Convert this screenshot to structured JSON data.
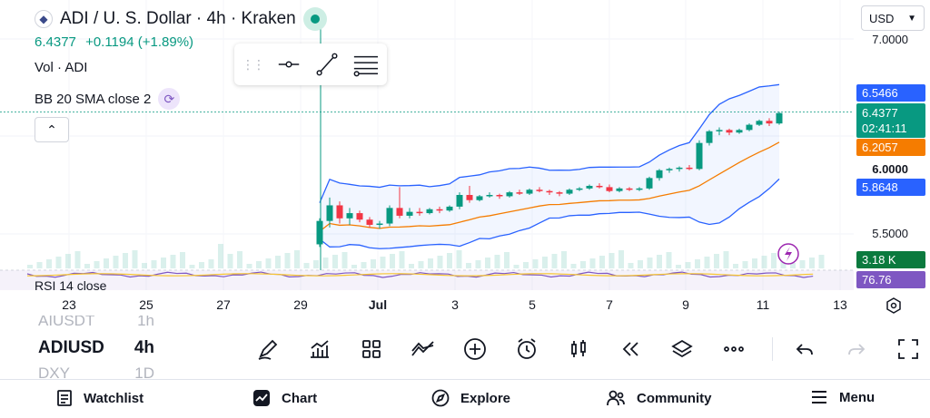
{
  "header": {
    "title": "ADI / U. S. Dollar · 4h · Kraken",
    "price": "6.4377",
    "change": "+0.1194 (+1.89%)"
  },
  "indicators": {
    "volume": "Vol · ADI",
    "bollinger": "BB 20 SMA close 2",
    "rsi": "RSI 14 close"
  },
  "currency_select": {
    "value": "USD"
  },
  "price_axis": {
    "labels": [
      "7.0000",
      "6.0000",
      "5.5000"
    ],
    "tags": [
      {
        "text": "6.5466",
        "color": "#2962ff"
      },
      {
        "text": "6.4377",
        "sub": "02:41:11",
        "color": "#089981"
      },
      {
        "text": "6.2057",
        "color": "#f57c00"
      },
      {
        "text": "5.8648",
        "color": "#2962ff"
      },
      {
        "text": "3.18 K",
        "color": "#0b7a3e"
      },
      {
        "text": "76.76",
        "color": "#7e57c2"
      }
    ]
  },
  "time_axis": [
    "23",
    "25",
    "27",
    "29",
    "Jul",
    "3",
    "5",
    "7",
    "9",
    "11",
    "13"
  ],
  "symbols": {
    "prev": {
      "symbol": "AIUSDT",
      "interval": "1h"
    },
    "current": {
      "symbol": "ADIUSD",
      "interval": "4h"
    },
    "next": {
      "symbol": "DXY",
      "interval": "1D"
    }
  },
  "toolbar": [
    "brush-icon",
    "indicators-icon",
    "layouts-icon",
    "compare-icon",
    "add-icon",
    "alert-icon",
    "candles-icon",
    "replay-icon",
    "layers-icon",
    "more-icon",
    "undo-icon",
    "redo-icon",
    "fullscreen-icon"
  ],
  "bottom_nav": [
    {
      "label": "Watchlist",
      "icon": "watchlist-icon"
    },
    {
      "label": "Chart",
      "icon": "chart-icon"
    },
    {
      "label": "Explore",
      "icon": "compass-icon"
    },
    {
      "label": "Community",
      "icon": "community-icon"
    },
    {
      "label": "Menu",
      "icon": "menu-icon"
    }
  ],
  "colors": {
    "up": "#089981",
    "down": "#f23645",
    "bb_band": "#2962ff",
    "bb_basis": "#f57c00",
    "accent": "#089981"
  },
  "chart_data": {
    "type": "candlestick",
    "price_range": [
      5.3,
      7.0
    ],
    "candles": [
      [
        5.42,
        5.62,
        5.4,
        5.6
      ],
      [
        5.6,
        5.78,
        5.55,
        5.72
      ],
      [
        5.72,
        5.75,
        5.58,
        5.62
      ],
      [
        5.62,
        5.7,
        5.57,
        5.66
      ],
      [
        5.66,
        5.68,
        5.59,
        5.61
      ],
      [
        5.61,
        5.63,
        5.55,
        5.57
      ],
      [
        5.57,
        5.6,
        5.54,
        5.58
      ],
      [
        5.58,
        5.72,
        5.56,
        5.7
      ],
      [
        5.7,
        5.86,
        5.62,
        5.64
      ],
      [
        5.64,
        5.7,
        5.62,
        5.67
      ],
      [
        5.67,
        5.7,
        5.64,
        5.66
      ],
      [
        5.66,
        5.7,
        5.65,
        5.69
      ],
      [
        5.69,
        5.71,
        5.66,
        5.68
      ],
      [
        5.68,
        5.72,
        5.67,
        5.71
      ],
      [
        5.71,
        5.82,
        5.69,
        5.8
      ],
      [
        5.8,
        5.87,
        5.74,
        5.76
      ],
      [
        5.76,
        5.8,
        5.75,
        5.79
      ],
      [
        5.79,
        5.82,
        5.78,
        5.8
      ],
      [
        5.8,
        5.81,
        5.77,
        5.79
      ],
      [
        5.79,
        5.83,
        5.78,
        5.82
      ],
      [
        5.82,
        5.84,
        5.8,
        5.81
      ],
      [
        5.81,
        5.85,
        5.8,
        5.84
      ],
      [
        5.84,
        5.86,
        5.82,
        5.83
      ],
      [
        5.83,
        5.84,
        5.8,
        5.82
      ],
      [
        5.82,
        5.83,
        5.79,
        5.81
      ],
      [
        5.81,
        5.85,
        5.8,
        5.84
      ],
      [
        5.84,
        5.86,
        5.83,
        5.85
      ],
      [
        5.85,
        5.88,
        5.84,
        5.87
      ],
      [
        5.87,
        5.89,
        5.85,
        5.86
      ],
      [
        5.86,
        5.88,
        5.82,
        5.83
      ],
      [
        5.83,
        5.86,
        5.82,
        5.85
      ],
      [
        5.85,
        5.86,
        5.83,
        5.84
      ],
      [
        5.84,
        5.86,
        5.83,
        5.85
      ],
      [
        5.85,
        5.94,
        5.84,
        5.93
      ],
      [
        5.93,
        6.0,
        5.91,
        5.99
      ],
      [
        5.99,
        6.01,
        5.97,
        6.0
      ],
      [
        6.0,
        6.02,
        5.98,
        6.01
      ],
      [
        6.01,
        6.03,
        5.99,
        6.0
      ],
      [
        6.0,
        6.22,
        5.99,
        6.2
      ],
      [
        6.2,
        6.3,
        6.18,
        6.29
      ],
      [
        6.29,
        6.32,
        6.26,
        6.3
      ],
      [
        6.3,
        6.31,
        6.26,
        6.28
      ],
      [
        6.28,
        6.31,
        6.27,
        6.3
      ],
      [
        6.3,
        6.35,
        6.29,
        6.34
      ],
      [
        6.34,
        6.38,
        6.33,
        6.37
      ],
      [
        6.37,
        6.39,
        6.33,
        6.35
      ],
      [
        6.35,
        6.44,
        6.34,
        6.43
      ]
    ]
  }
}
